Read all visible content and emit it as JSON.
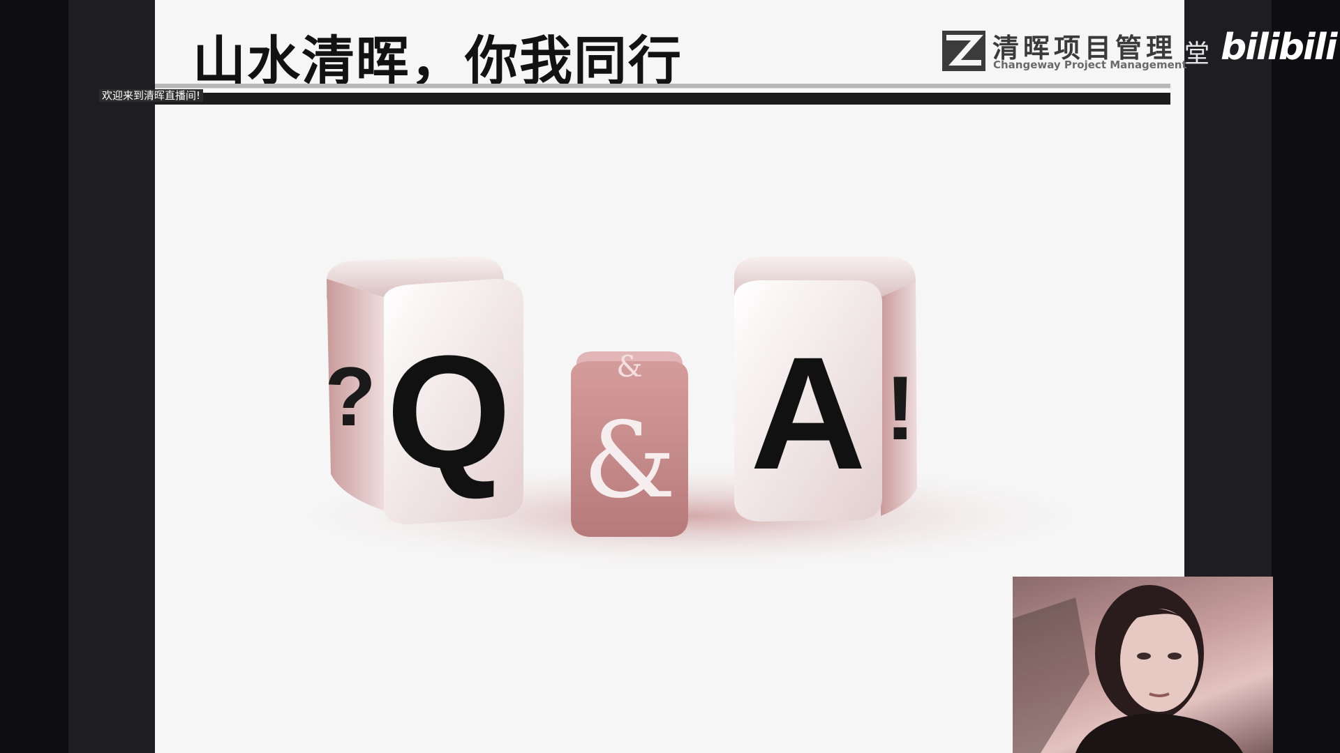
{
  "slide": {
    "title": "山水清晖，你我同行",
    "brand": {
      "name": "清晖项目管理",
      "subtitle": "Changeway Project Management"
    },
    "qa_image": {
      "left_die_letter": "Q",
      "middle_die_symbol": "&",
      "right_die_letter": "A",
      "left_side_symbol": "?",
      "right_side_symbol": "!"
    }
  },
  "overlay": {
    "welcome_banner": "欢迎来到清晖直播间!",
    "bilibili_prefix": "堂",
    "bilibili_logo": "bilibili"
  },
  "webcam": {
    "label": "presenter-video"
  },
  "colors": {
    "slide_bg": "#f6f6f6",
    "die_face": "#f3eaea",
    "die_pink": "#c88a8a",
    "frame_dark": "#0d0d12"
  }
}
